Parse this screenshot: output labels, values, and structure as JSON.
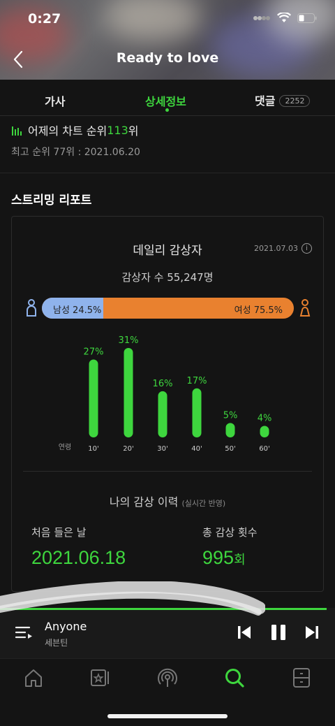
{
  "status_bar": {
    "time": "0:27"
  },
  "header": {
    "title": "Ready to love"
  },
  "tabs": [
    {
      "label": "가사",
      "active": false
    },
    {
      "label": "상세정보",
      "active": true
    },
    {
      "label": "댓글",
      "badge": "2252",
      "active": false
    }
  ],
  "chart_rank": {
    "prefix": "어제의 차트 순위 ",
    "rank": "113",
    "suffix": "위",
    "best": "최고 순위 77위 : 2021.06.20"
  },
  "streaming_report": {
    "section_title": "스트리밍 리포트",
    "card_title": "데일리 감상자",
    "date": "2021.07.03",
    "info_icon": "i",
    "listeners": "감상자 수 55,247명",
    "gender": {
      "male_label": "남성 24.5%",
      "female_label": "여성 75.5%",
      "male_pct": 24.5,
      "female_pct": 75.5,
      "male_color": "#8fb3ec",
      "female_color": "#e9812f"
    }
  },
  "chart_data": {
    "type": "bar",
    "axis_label": "연령",
    "categories": [
      "10'",
      "20'",
      "30'",
      "40'",
      "50'",
      "60'"
    ],
    "values": [
      27,
      31,
      16,
      17,
      5,
      4
    ],
    "value_labels": [
      "27%",
      "31%",
      "16%",
      "17%",
      "5%",
      "4%"
    ],
    "ylim": [
      0,
      31
    ],
    "color": "#3ed63e"
  },
  "history": {
    "title": "나의 감상 이력",
    "note": "(실시간 반영)",
    "first_label": "처음 들은 날",
    "first_value": "2021.06.18",
    "total_label": "총 감상 횟수",
    "total_value": "995",
    "total_unit": "회"
  },
  "player": {
    "song": "Anyone",
    "artist": "세븐틴",
    "accent": "#3ed63e"
  },
  "bottom_nav": [
    {
      "name": "home-icon"
    },
    {
      "name": "library-icon"
    },
    {
      "name": "radio-icon"
    },
    {
      "name": "search-icon",
      "active": true
    },
    {
      "name": "locker-icon"
    }
  ]
}
